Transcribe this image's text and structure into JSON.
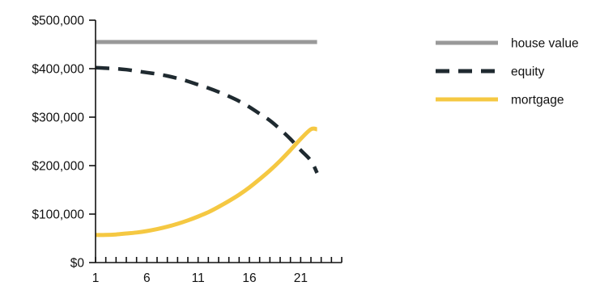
{
  "chart_data": {
    "type": "line",
    "title": "",
    "xlabel": "",
    "ylabel": "",
    "x": [
      1,
      2,
      3,
      4,
      5,
      6,
      7,
      8,
      9,
      10,
      11,
      12,
      13,
      14,
      15,
      16,
      17,
      18,
      19,
      20,
      21,
      22,
      23,
      24,
      25
    ],
    "xlim": [
      1,
      25
    ],
    "ylim": [
      0,
      500000
    ],
    "xticks": [
      1,
      6,
      11,
      16,
      21
    ],
    "xtick_labels": [
      "1",
      "6",
      "11",
      "16",
      "21"
    ],
    "yticks": [
      0,
      100000,
      200000,
      300000,
      400000,
      500000
    ],
    "ytick_labels": [
      "$0",
      "$100,000",
      "$200,000",
      "$300,000",
      "$400,000",
      "$500,000"
    ],
    "legend_position": "top-right",
    "grid": false,
    "series": [
      {
        "name": "house value",
        "color": "#999999",
        "dash": "solid",
        "values": [
          455000,
          455000,
          455000,
          455000,
          455000,
          455000,
          455000,
          455000,
          455000,
          455000,
          455000,
          455000,
          455000,
          455000,
          455000,
          455000,
          455000,
          455000,
          455000,
          455000,
          455000,
          455000,
          455000,
          455000,
          455000
        ]
      },
      {
        "name": "equity",
        "color": "#1f2a30",
        "dash": "dashed",
        "values": [
          402000,
          401000,
          400000,
          398000,
          395000,
          392000,
          389000,
          385000,
          380000,
          374000,
          367000,
          360000,
          352000,
          343000,
          333000,
          321000,
          307000,
          293000,
          275000,
          255000,
          232000,
          210000,
          185000,
          185000,
          185000
        ]
      },
      {
        "name": "mortgage",
        "color": "#f5c842",
        "dash": "solid",
        "values": [
          57000,
          57000,
          58000,
          60000,
          62000,
          65000,
          69000,
          74000,
          80000,
          87000,
          95000,
          104000,
          115000,
          127000,
          140000,
          155000,
          172000,
          190000,
          210000,
          232000,
          255000,
          275000,
          275000,
          275000,
          275000
        ]
      }
    ]
  }
}
